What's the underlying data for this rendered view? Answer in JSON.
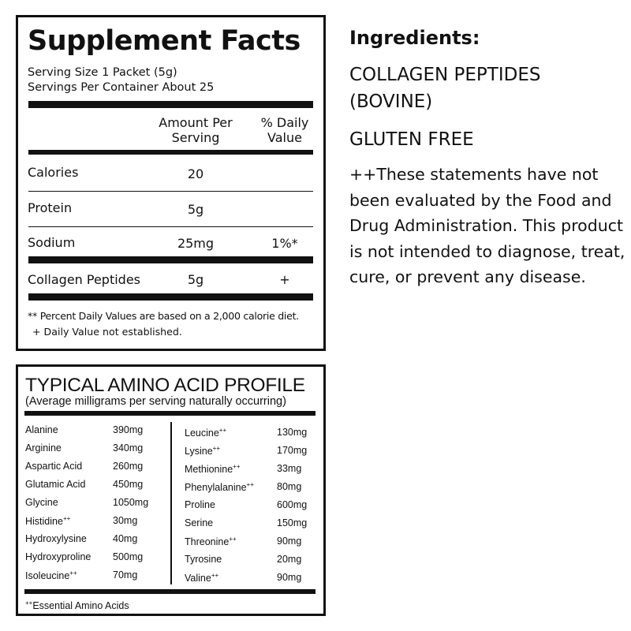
{
  "facts": {
    "title": "Supplement Facts",
    "serving_size": "Serving Size 1 Packet (5g)",
    "servings_per_container": "Servings Per Container About 25",
    "col_amount": "Amount Per Serving",
    "col_dv": "% Daily Value",
    "rows": [
      {
        "name": "Calories",
        "amount": "20",
        "dv": ""
      },
      {
        "name": "Protein",
        "amount": "5g",
        "dv": ""
      },
      {
        "name": "Sodium",
        "amount": "25mg",
        "dv": "1%*"
      },
      {
        "name": "Collagen Peptides",
        "amount": "5g",
        "dv": "+"
      }
    ],
    "footnote1": "** Percent Daily Values are based on a 2,000 calorie diet.",
    "footnote2": "+ Daily Value not established."
  },
  "amino": {
    "title": "TYPICAL AMINO ACID PROFILE",
    "subtitle": "(Average milligrams per serving naturally occurring)",
    "left": [
      {
        "name": "Alanine",
        "sup": "",
        "value": "390mg"
      },
      {
        "name": "Arginine",
        "sup": "",
        "value": "340mg"
      },
      {
        "name": "Aspartic Acid",
        "sup": "",
        "value": "260mg"
      },
      {
        "name": "Glutamic Acid",
        "sup": "",
        "value": "450mg"
      },
      {
        "name": "Glycine",
        "sup": "",
        "value": "1050mg"
      },
      {
        "name": "Histidine",
        "sup": "++",
        "value": "30mg"
      },
      {
        "name": "Hydroxylysine",
        "sup": "",
        "value": "40mg"
      },
      {
        "name": "Hydroxyproline",
        "sup": "",
        "value": "500mg"
      },
      {
        "name": "Isoleucine",
        "sup": "++",
        "value": "70mg"
      }
    ],
    "right": [
      {
        "name": "Leucine",
        "sup": "++",
        "value": "130mg"
      },
      {
        "name": "Lysine",
        "sup": "++",
        "value": "170mg"
      },
      {
        "name": "Methionine",
        "sup": "++",
        "value": "33mg"
      },
      {
        "name": "Phenylalanine",
        "sup": "++",
        "value": "80mg"
      },
      {
        "name": "Proline",
        "sup": "",
        "value": "600mg"
      },
      {
        "name": "Serine",
        "sup": "",
        "value": "150mg"
      },
      {
        "name": "Threonine",
        "sup": "++",
        "value": "90mg"
      },
      {
        "name": "Tyrosine",
        "sup": "",
        "value": "20mg"
      },
      {
        "name": "Valine",
        "sup": "++",
        "value": "90mg"
      }
    ],
    "footnote_sup": "++",
    "footnote": "Essential Amino Acids"
  },
  "ingredients": {
    "title": "Ingredients:",
    "line1": "COLLAGEN PEPTIDES",
    "line2": "(BOVINE)",
    "gluten": "GLUTEN FREE",
    "disclaimer": "++These statements have not been evaluated by the Food and Drug Administration. This product is not intended to diagnose, treat, cure, or prevent any disease."
  }
}
